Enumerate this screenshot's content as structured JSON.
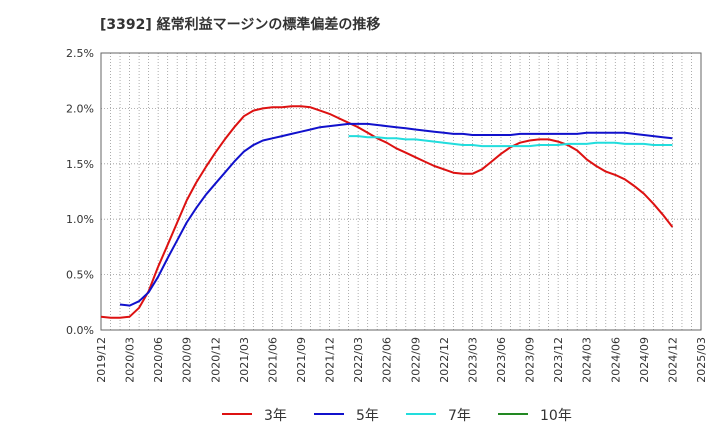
{
  "chart_data": {
    "type": "line",
    "title": "[3392]  経常利益マージンの標準偏差の推移",
    "xlabel": "",
    "ylabel": "",
    "ylim": [
      0,
      2.5
    ],
    "y_ticks": [
      "0.0%",
      "0.5%",
      "1.0%",
      "1.5%",
      "2.0%",
      "2.5%"
    ],
    "x_ticks": [
      "2019/12",
      "2020/03",
      "2020/06",
      "2020/09",
      "2020/12",
      "2021/03",
      "2021/06",
      "2021/09",
      "2021/12",
      "2022/03",
      "2022/06",
      "2022/09",
      "2022/12",
      "2023/03",
      "2023/06",
      "2023/09",
      "2023/12",
      "2024/03",
      "2024/06",
      "2024/09",
      "2024/12",
      "2025/03"
    ],
    "x_range": [
      "2019/12",
      "2025/03"
    ],
    "grid": true,
    "legend_position": "bottom",
    "series": [
      {
        "name": "3年",
        "color": "#dd1111",
        "points": [
          [
            "2019/12",
            0.12
          ],
          [
            "2020/01",
            0.11
          ],
          [
            "2020/02",
            0.11
          ],
          [
            "2020/03",
            0.12
          ],
          [
            "2020/04",
            0.2
          ],
          [
            "2020/05",
            0.35
          ],
          [
            "2020/06",
            0.57
          ],
          [
            "2020/07",
            0.77
          ],
          [
            "2020/08",
            0.97
          ],
          [
            "2020/09",
            1.17
          ],
          [
            "2020/10",
            1.33
          ],
          [
            "2020/11",
            1.47
          ],
          [
            "2020/12",
            1.6
          ],
          [
            "2021/01",
            1.72
          ],
          [
            "2021/02",
            1.83
          ],
          [
            "2021/03",
            1.93
          ],
          [
            "2021/04",
            1.98
          ],
          [
            "2021/05",
            2.0
          ],
          [
            "2021/06",
            2.01
          ],
          [
            "2021/07",
            2.01
          ],
          [
            "2021/08",
            2.02
          ],
          [
            "2021/09",
            2.02
          ],
          [
            "2021/10",
            2.01
          ],
          [
            "2021/11",
            1.98
          ],
          [
            "2021/12",
            1.95
          ],
          [
            "2022/01",
            1.91
          ],
          [
            "2022/02",
            1.87
          ],
          [
            "2022/03",
            1.83
          ],
          [
            "2022/04",
            1.78
          ],
          [
            "2022/05",
            1.73
          ],
          [
            "2022/06",
            1.69
          ],
          [
            "2022/07",
            1.64
          ],
          [
            "2022/08",
            1.6
          ],
          [
            "2022/09",
            1.56
          ],
          [
            "2022/10",
            1.52
          ],
          [
            "2022/11",
            1.48
          ],
          [
            "2022/12",
            1.45
          ],
          [
            "2023/01",
            1.42
          ],
          [
            "2023/02",
            1.41
          ],
          [
            "2023/03",
            1.41
          ],
          [
            "2023/04",
            1.45
          ],
          [
            "2023/05",
            1.52
          ],
          [
            "2023/06",
            1.59
          ],
          [
            "2023/07",
            1.65
          ],
          [
            "2023/08",
            1.69
          ],
          [
            "2023/09",
            1.71
          ],
          [
            "2023/10",
            1.72
          ],
          [
            "2023/11",
            1.72
          ],
          [
            "2023/12",
            1.7
          ],
          [
            "2024/01",
            1.67
          ],
          [
            "2024/02",
            1.62
          ],
          [
            "2024/03",
            1.54
          ],
          [
            "2024/04",
            1.48
          ],
          [
            "2024/05",
            1.43
          ],
          [
            "2024/06",
            1.4
          ],
          [
            "2024/07",
            1.36
          ],
          [
            "2024/08",
            1.3
          ],
          [
            "2024/09",
            1.23
          ],
          [
            "2024/10",
            1.14
          ],
          [
            "2024/11",
            1.04
          ],
          [
            "2024/12",
            0.93
          ]
        ]
      },
      {
        "name": "5年",
        "color": "#1111cc",
        "points": [
          [
            "2020/02",
            0.23
          ],
          [
            "2020/03",
            0.22
          ],
          [
            "2020/04",
            0.26
          ],
          [
            "2020/05",
            0.34
          ],
          [
            "2020/06",
            0.48
          ],
          [
            "2020/07",
            0.65
          ],
          [
            "2020/08",
            0.81
          ],
          [
            "2020/09",
            0.97
          ],
          [
            "2020/10",
            1.1
          ],
          [
            "2020/11",
            1.22
          ],
          [
            "2020/12",
            1.32
          ],
          [
            "2021/01",
            1.42
          ],
          [
            "2021/02",
            1.52
          ],
          [
            "2021/03",
            1.61
          ],
          [
            "2021/04",
            1.67
          ],
          [
            "2021/05",
            1.71
          ],
          [
            "2021/06",
            1.73
          ],
          [
            "2021/07",
            1.75
          ],
          [
            "2021/08",
            1.77
          ],
          [
            "2021/09",
            1.79
          ],
          [
            "2021/10",
            1.81
          ],
          [
            "2021/11",
            1.83
          ],
          [
            "2021/12",
            1.84
          ],
          [
            "2022/01",
            1.85
          ],
          [
            "2022/02",
            1.86
          ],
          [
            "2022/03",
            1.86
          ],
          [
            "2022/04",
            1.86
          ],
          [
            "2022/05",
            1.85
          ],
          [
            "2022/06",
            1.84
          ],
          [
            "2022/07",
            1.83
          ],
          [
            "2022/08",
            1.82
          ],
          [
            "2022/09",
            1.81
          ],
          [
            "2022/10",
            1.8
          ],
          [
            "2022/11",
            1.79
          ],
          [
            "2022/12",
            1.78
          ],
          [
            "2023/01",
            1.77
          ],
          [
            "2023/02",
            1.77
          ],
          [
            "2023/03",
            1.76
          ],
          [
            "2023/04",
            1.76
          ],
          [
            "2023/05",
            1.76
          ],
          [
            "2023/06",
            1.76
          ],
          [
            "2023/07",
            1.76
          ],
          [
            "2023/08",
            1.77
          ],
          [
            "2023/09",
            1.77
          ],
          [
            "2023/10",
            1.77
          ],
          [
            "2023/11",
            1.77
          ],
          [
            "2023/12",
            1.77
          ],
          [
            "2024/01",
            1.77
          ],
          [
            "2024/02",
            1.77
          ],
          [
            "2024/03",
            1.78
          ],
          [
            "2024/04",
            1.78
          ],
          [
            "2024/05",
            1.78
          ],
          [
            "2024/06",
            1.78
          ],
          [
            "2024/07",
            1.78
          ],
          [
            "2024/08",
            1.77
          ],
          [
            "2024/09",
            1.76
          ],
          [
            "2024/10",
            1.75
          ],
          [
            "2024/11",
            1.74
          ],
          [
            "2024/12",
            1.73
          ]
        ]
      },
      {
        "name": "7年",
        "color": "#22dddd",
        "points": [
          [
            "2022/02",
            1.75
          ],
          [
            "2022/03",
            1.75
          ],
          [
            "2022/04",
            1.74
          ],
          [
            "2022/05",
            1.74
          ],
          [
            "2022/06",
            1.73
          ],
          [
            "2022/07",
            1.73
          ],
          [
            "2022/08",
            1.72
          ],
          [
            "2022/09",
            1.72
          ],
          [
            "2022/10",
            1.71
          ],
          [
            "2022/11",
            1.7
          ],
          [
            "2022/12",
            1.69
          ],
          [
            "2023/01",
            1.68
          ],
          [
            "2023/02",
            1.67
          ],
          [
            "2023/03",
            1.67
          ],
          [
            "2023/04",
            1.66
          ],
          [
            "2023/05",
            1.66
          ],
          [
            "2023/06",
            1.66
          ],
          [
            "2023/07",
            1.66
          ],
          [
            "2023/08",
            1.66
          ],
          [
            "2023/09",
            1.66
          ],
          [
            "2023/10",
            1.67
          ],
          [
            "2023/11",
            1.67
          ],
          [
            "2023/12",
            1.67
          ],
          [
            "2024/01",
            1.68
          ],
          [
            "2024/02",
            1.68
          ],
          [
            "2024/03",
            1.68
          ],
          [
            "2024/04",
            1.69
          ],
          [
            "2024/05",
            1.69
          ],
          [
            "2024/06",
            1.69
          ],
          [
            "2024/07",
            1.68
          ],
          [
            "2024/08",
            1.68
          ],
          [
            "2024/09",
            1.68
          ],
          [
            "2024/10",
            1.67
          ],
          [
            "2024/11",
            1.67
          ],
          [
            "2024/12",
            1.67
          ]
        ]
      },
      {
        "name": "10年",
        "color": "#228822",
        "points": []
      }
    ]
  }
}
